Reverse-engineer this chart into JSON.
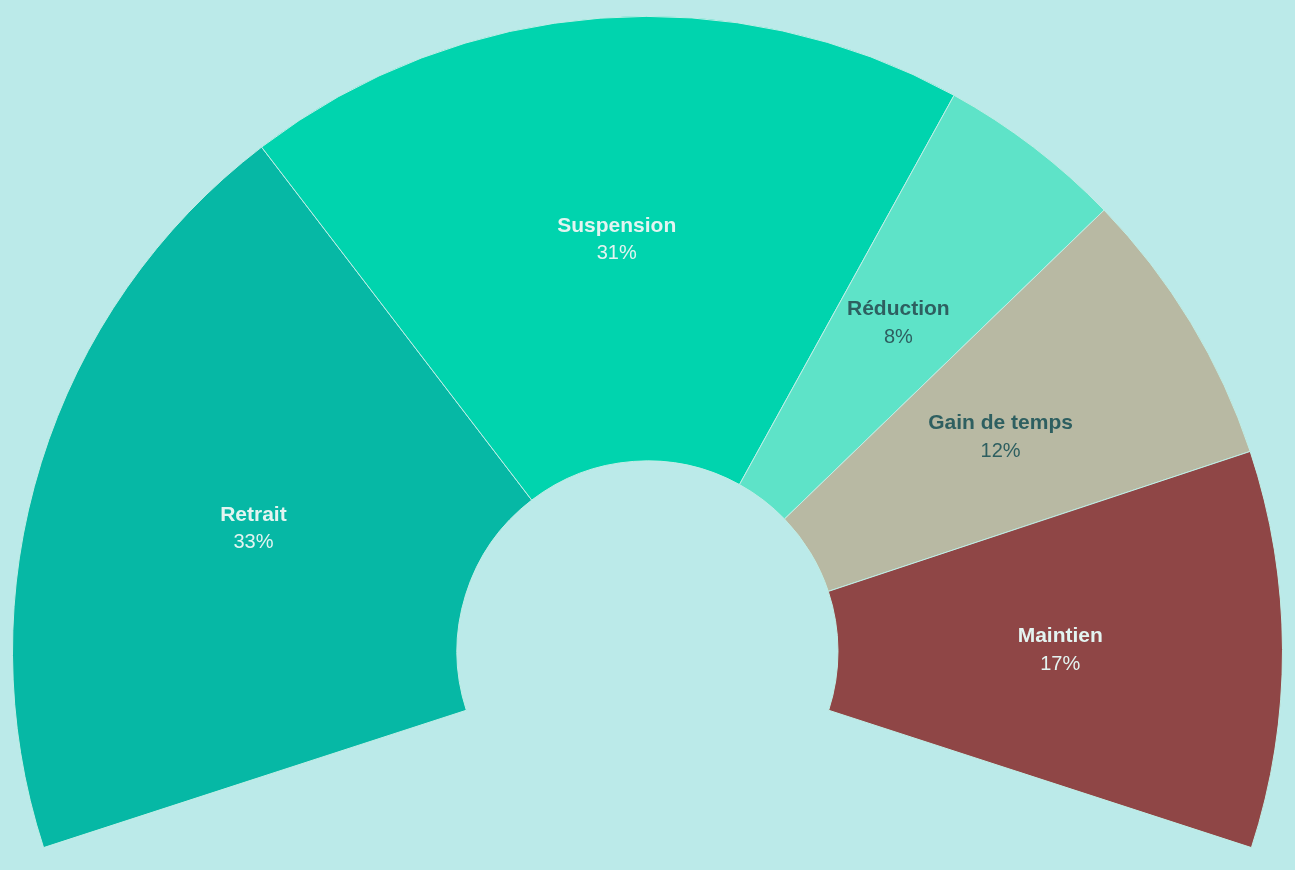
{
  "chart_data": {
    "type": "donut",
    "categories": [
      "Retrait",
      "Suspension",
      "Réduction",
      "Gain de temps",
      "Maintien"
    ],
    "values": [
      33,
      31,
      8,
      12,
      17
    ],
    "value_labels": [
      "33%",
      "31%",
      "8%",
      "12%",
      "17%"
    ],
    "colors": [
      "#06b8a5",
      "#00d4ae",
      "#5ee3c8",
      "#b8b9a3",
      "#8f4646"
    ],
    "legend": false
  }
}
